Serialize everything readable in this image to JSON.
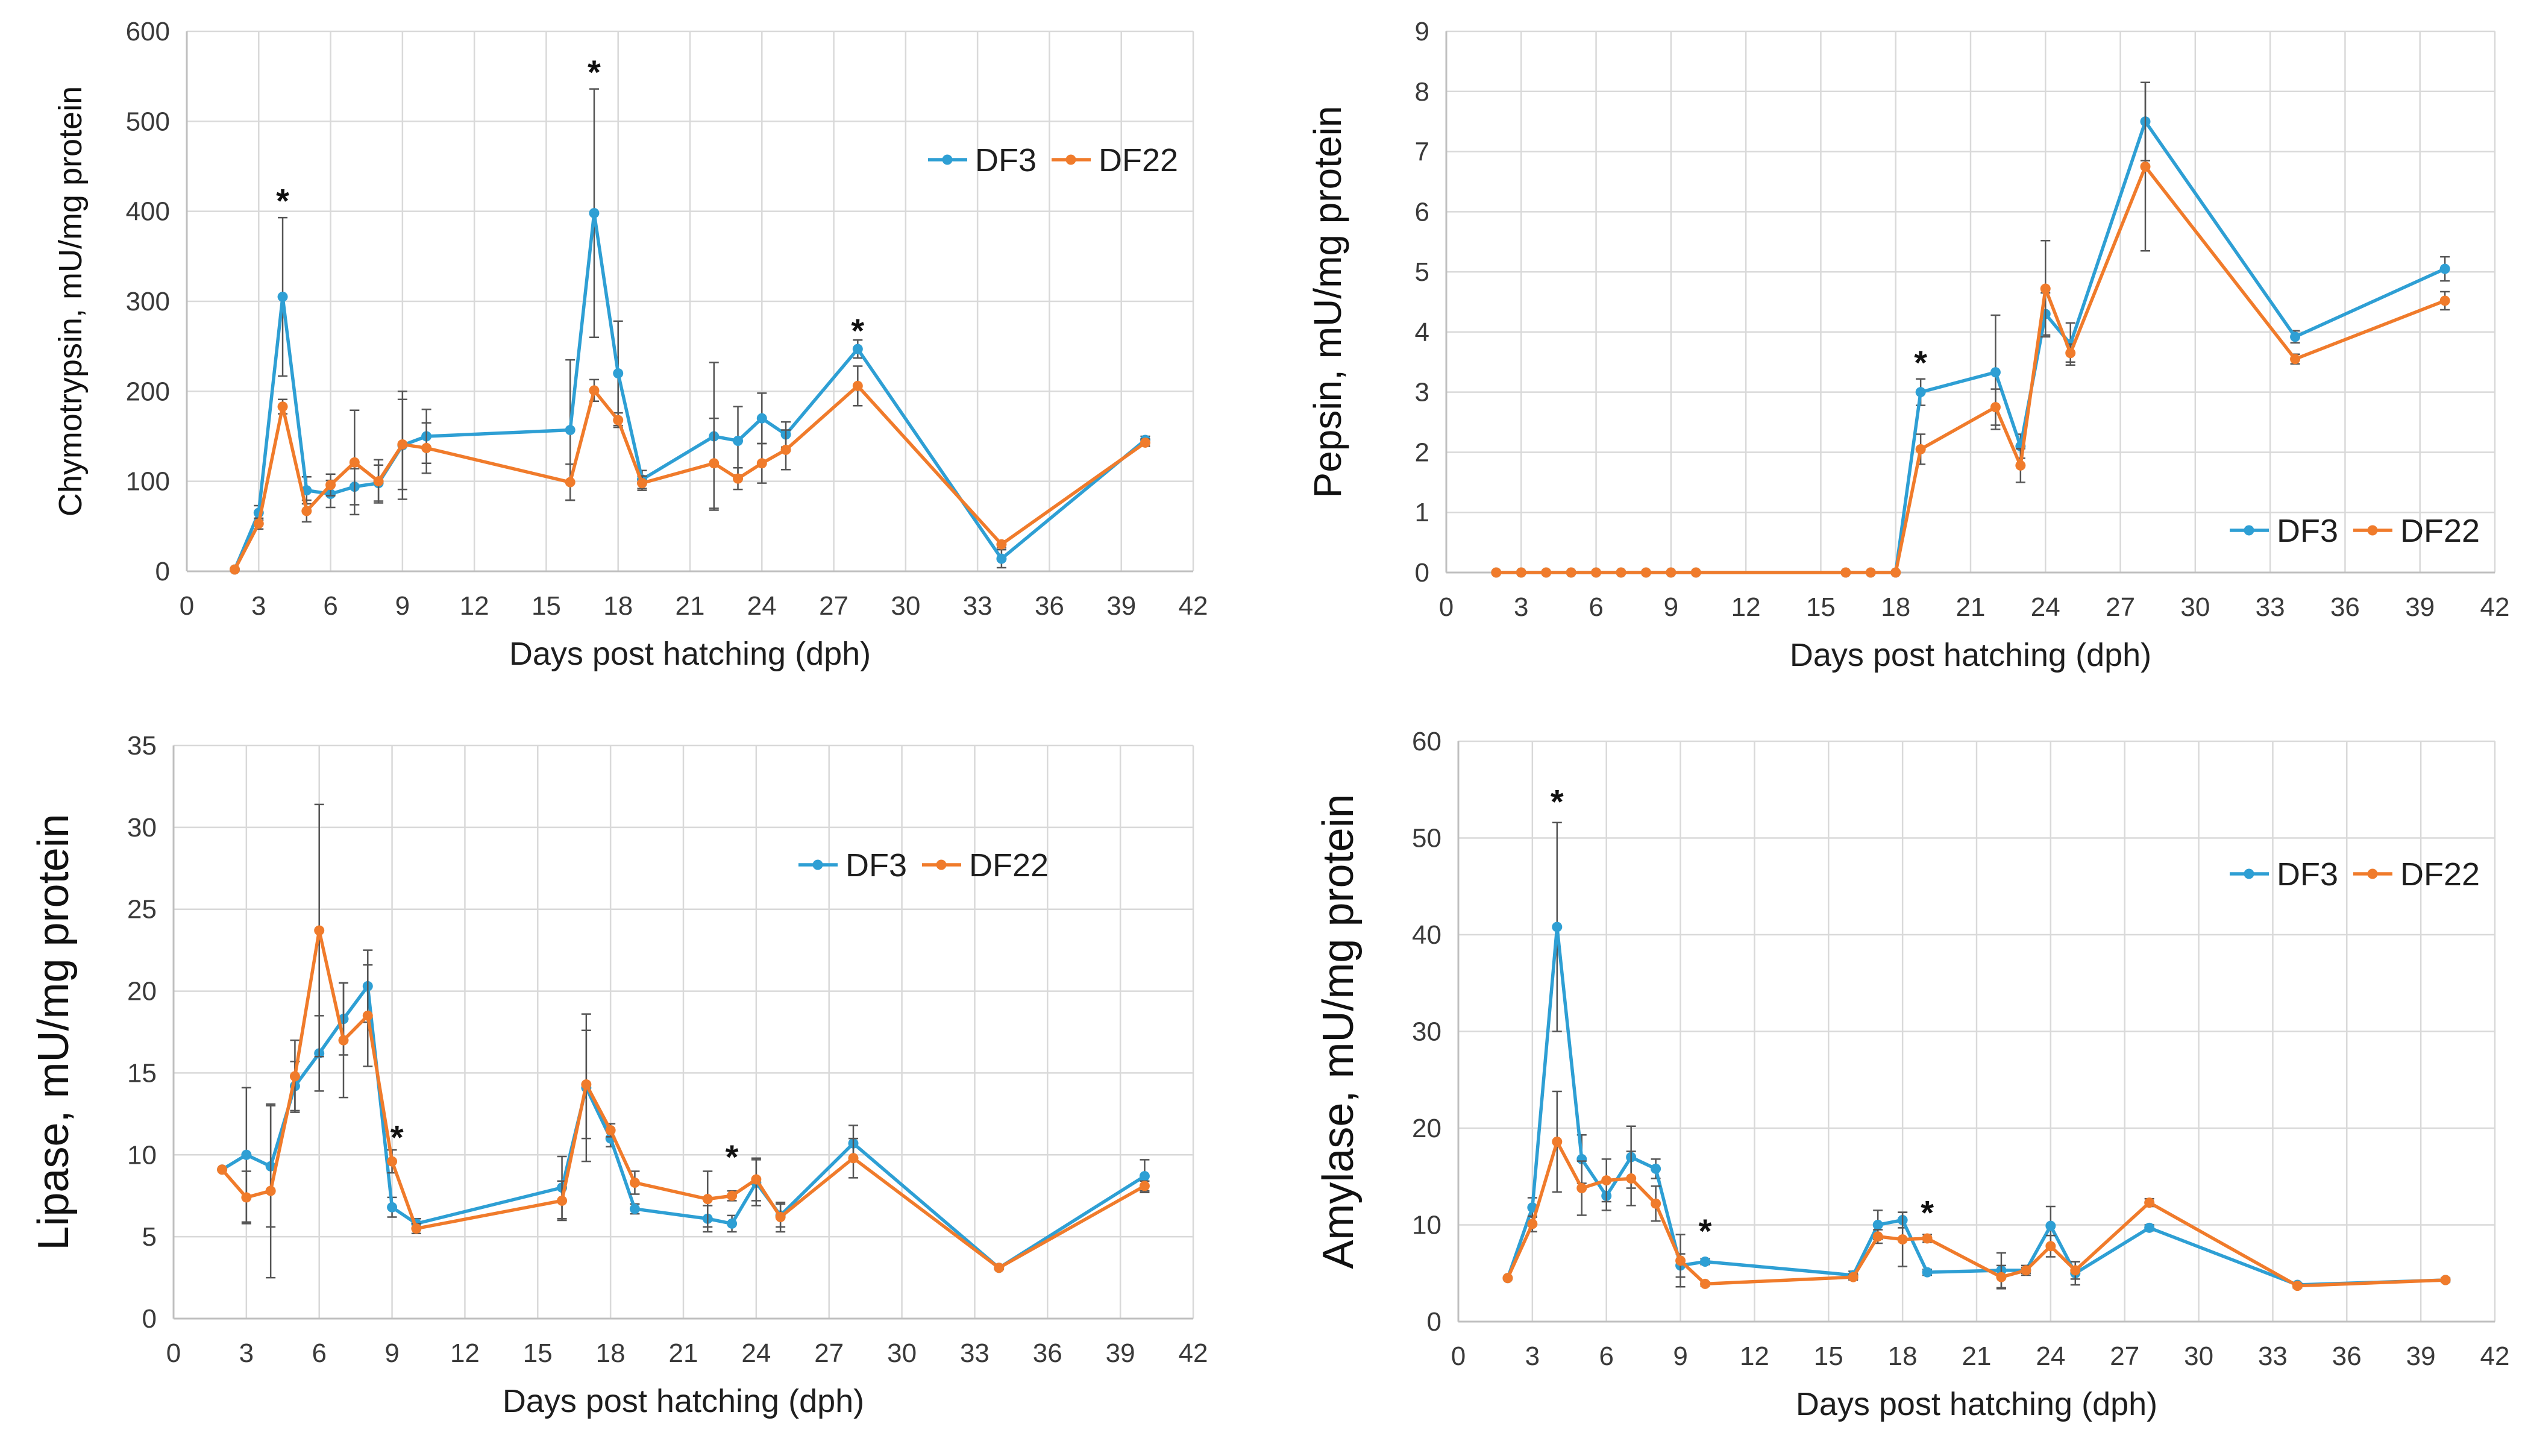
{
  "colors": {
    "DF3": "#2e9fd4",
    "DF22": "#f07b2b"
  },
  "chart_data": [
    {
      "type": "line",
      "title": "",
      "xlabel": "Days post hatching (dph)",
      "ylabel": "Chymotrypsin, mU/mg protein",
      "xlim": [
        0,
        42
      ],
      "xticks": [
        0,
        3,
        6,
        9,
        12,
        15,
        18,
        21,
        24,
        27,
        30,
        33,
        36,
        39,
        42
      ],
      "ylim": [
        0,
        600
      ],
      "yticks": [
        0,
        100,
        200,
        300,
        400,
        500,
        600
      ],
      "legend_position": "top-right",
      "series": [
        {
          "name": "DF3",
          "x": [
            2,
            3,
            4,
            5,
            6,
            7,
            8,
            9,
            10,
            16,
            17,
            18,
            19,
            22,
            23,
            24,
            25,
            28,
            34,
            40
          ],
          "y": [
            2,
            65,
            305,
            90,
            86,
            94,
            98,
            140,
            150,
            157,
            398,
            220,
            102,
            150,
            145,
            170,
            152,
            247,
            14,
            146
          ],
          "err": [
            0,
            8,
            88,
            15,
            15,
            20,
            20,
            60,
            30,
            78,
            138,
            58,
            10,
            82,
            38,
            28,
            14,
            10,
            10,
            4
          ]
        },
        {
          "name": "DF22",
          "x": [
            2,
            3,
            4,
            5,
            6,
            7,
            8,
            9,
            10,
            16,
            17,
            18,
            19,
            22,
            23,
            24,
            25,
            28,
            34,
            40
          ],
          "y": [
            2,
            53,
            183,
            67,
            96,
            121,
            100,
            141,
            137,
            99,
            201,
            168,
            98,
            120,
            103,
            120,
            135,
            206,
            30,
            143
          ],
          "err": [
            0,
            6,
            8,
            12,
            12,
            58,
            24,
            50,
            28,
            20,
            12,
            8,
            8,
            50,
            12,
            22,
            22,
            22,
            4,
            4
          ]
        }
      ],
      "annotations": [
        {
          "text": "*",
          "x": 4,
          "y": 412
        },
        {
          "text": "*",
          "x": 17,
          "y": 555
        },
        {
          "text": "*",
          "x": 28,
          "y": 268
        }
      ]
    },
    {
      "type": "line",
      "title": "",
      "xlabel": "Days post hatching (dph)",
      "ylabel": "Pepsin, mU/mg protein",
      "xlim": [
        0,
        42
      ],
      "xticks": [
        0,
        3,
        6,
        9,
        12,
        15,
        18,
        21,
        24,
        27,
        30,
        33,
        36,
        39,
        42
      ],
      "ylim": [
        0,
        9
      ],
      "yticks": [
        0,
        1,
        2,
        3,
        4,
        5,
        6,
        7,
        8,
        9
      ],
      "legend_position": "bottom-right",
      "series": [
        {
          "name": "DF3",
          "x": [
            2,
            3,
            4,
            5,
            6,
            7,
            8,
            9,
            10,
            16,
            17,
            18,
            19,
            22,
            23,
            24,
            25,
            28,
            34,
            40
          ],
          "y": [
            0,
            0,
            0,
            0,
            0,
            0,
            0,
            0,
            0,
            0,
            0,
            0,
            3.0,
            3.33,
            2.1,
            4.3,
            3.8,
            7.5,
            3.92,
            5.05
          ],
          "err": [
            0,
            0,
            0,
            0,
            0,
            0,
            0,
            0,
            0,
            0,
            0,
            0,
            0.22,
            0.95,
            0.2,
            0.35,
            0.35,
            0.65,
            0.1,
            0.2
          ]
        },
        {
          "name": "DF22",
          "x": [
            2,
            3,
            4,
            5,
            6,
            7,
            8,
            9,
            10,
            16,
            17,
            18,
            19,
            22,
            23,
            24,
            25,
            28,
            34,
            40
          ],
          "y": [
            0,
            0,
            0,
            0,
            0,
            0,
            0,
            0,
            0,
            0,
            0,
            0,
            2.05,
            2.75,
            1.78,
            4.72,
            3.65,
            6.75,
            3.55,
            4.52
          ],
          "err": [
            0,
            0,
            0,
            0,
            0,
            0,
            0,
            0,
            0,
            0,
            0,
            0,
            0.25,
            0.3,
            0.28,
            0.8,
            0.15,
            1.4,
            0.08,
            0.15
          ]
        }
      ],
      "annotations": [
        {
          "text": "*",
          "x": 19,
          "y": 3.5
        }
      ]
    },
    {
      "type": "line",
      "title": "",
      "xlabel": "Days post hatching (dph)",
      "ylabel": "Lipase, mU/mg protein",
      "xlim": [
        0,
        42
      ],
      "xticks": [
        0,
        3,
        6,
        9,
        12,
        15,
        18,
        21,
        24,
        27,
        30,
        33,
        36,
        39,
        42
      ],
      "ylim": [
        0,
        35
      ],
      "yticks": [
        0,
        5,
        10,
        15,
        20,
        25,
        30,
        35
      ],
      "legend_position": "top-right",
      "series": [
        {
          "name": "DF3",
          "x": [
            2,
            3,
            4,
            5,
            6,
            7,
            8,
            9,
            10,
            16,
            17,
            18,
            19,
            22,
            23,
            24,
            25,
            28,
            34,
            40
          ],
          "y": [
            9.1,
            10.0,
            9.3,
            14.2,
            16.2,
            18.3,
            20.3,
            6.8,
            5.8,
            8.0,
            14.1,
            11.0,
            6.7,
            6.1,
            5.8,
            8.3,
            6.3,
            10.7,
            3.1,
            8.7
          ],
          "err": [
            0,
            4.1,
            3.7,
            1.5,
            2.3,
            2.2,
            2.2,
            0.6,
            0.3,
            1.9,
            4.5,
            0.5,
            0.3,
            0.8,
            0.5,
            1.4,
            0.7,
            1.1,
            0.1,
            1.0
          ]
        },
        {
          "name": "DF22",
          "x": [
            2,
            3,
            4,
            5,
            6,
            7,
            8,
            9,
            10,
            16,
            17,
            18,
            19,
            22,
            23,
            24,
            25,
            28,
            34,
            40
          ],
          "y": [
            9.1,
            7.4,
            7.8,
            14.8,
            23.7,
            17.0,
            18.5,
            9.6,
            5.5,
            7.2,
            14.3,
            11.5,
            8.3,
            7.3,
            7.5,
            8.5,
            6.2,
            9.8,
            3.1,
            8.1
          ],
          "err": [
            0,
            1.6,
            5.3,
            2.2,
            7.7,
            3.5,
            3.1,
            0.7,
            0.3,
            1.2,
            3.3,
            0.4,
            0.7,
            1.7,
            0.3,
            1.3,
            0.9,
            1.2,
            0.1,
            0.3
          ]
        }
      ],
      "annotations": [
        {
          "text": "*",
          "x": 9.2,
          "y": 11.1
        },
        {
          "text": "*",
          "x": 23,
          "y": 9.9
        }
      ]
    },
    {
      "type": "line",
      "title": "",
      "xlabel": "Days post hatching (dph)",
      "ylabel": "Amylase, mU/mg protein",
      "xlim": [
        0,
        42
      ],
      "xticks": [
        0,
        3,
        6,
        9,
        12,
        15,
        18,
        21,
        24,
        27,
        30,
        33,
        36,
        39,
        42
      ],
      "ylim": [
        0,
        60
      ],
      "yticks": [
        0,
        10,
        20,
        30,
        40,
        50,
        60
      ],
      "legend_position": "top-right",
      "series": [
        {
          "name": "DF3",
          "x": [
            2,
            3,
            4,
            5,
            6,
            7,
            8,
            9,
            10,
            16,
            17,
            18,
            19,
            22,
            23,
            24,
            25,
            28,
            34,
            40
          ],
          "y": [
            4.5,
            11.8,
            40.8,
            16.8,
            13.0,
            17.0,
            15.8,
            5.8,
            6.2,
            4.8,
            10.0,
            10.5,
            5.1,
            5.3,
            5.3,
            9.9,
            5.0,
            9.7,
            3.8,
            4.3
          ],
          "err": [
            0,
            1.0,
            10.8,
            2.5,
            1.5,
            3.2,
            1.0,
            1.2,
            0.3,
            0.4,
            1.5,
            0.8,
            0.3,
            1.8,
            0.3,
            2.0,
            1.2,
            0.3,
            0.2,
            0.2
          ]
        },
        {
          "name": "DF22",
          "x": [
            2,
            3,
            4,
            5,
            6,
            7,
            8,
            9,
            10,
            16,
            17,
            18,
            19,
            22,
            23,
            24,
            25,
            28,
            34,
            40
          ],
          "y": [
            4.5,
            10.1,
            18.6,
            13.8,
            14.6,
            14.8,
            12.2,
            6.3,
            3.9,
            4.6,
            8.8,
            8.5,
            8.6,
            4.6,
            5.3,
            7.8,
            5.3,
            12.3,
            3.7,
            4.3
          ],
          "err": [
            0,
            0.8,
            5.2,
            2.8,
            2.2,
            2.8,
            1.8,
            2.7,
            0.2,
            0.3,
            0.7,
            2.8,
            0.4,
            1.2,
            0.5,
            1.1,
            0.9,
            0.4,
            0.2,
            0.2
          ]
        }
      ],
      "annotations": [
        {
          "text": "*",
          "x": 4,
          "y": 53.8
        },
        {
          "text": "*",
          "x": 10,
          "y": 9.4
        },
        {
          "text": "*",
          "x": 19,
          "y": 11.3
        }
      ]
    }
  ]
}
